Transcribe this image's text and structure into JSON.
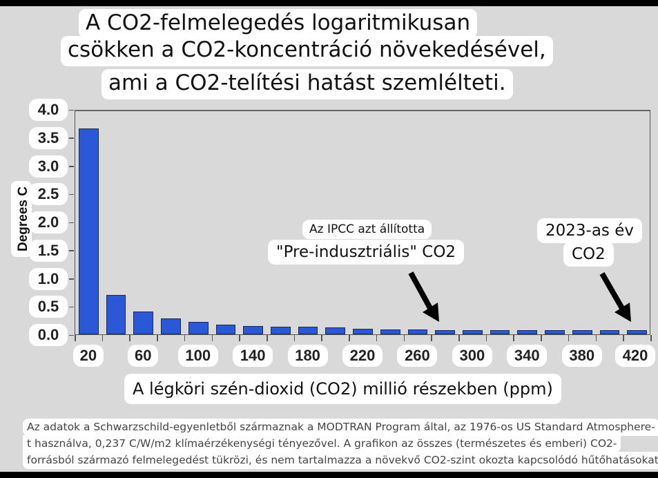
{
  "title": {
    "lines": [
      "A CO2-felmelegedés logaritmikusan",
      "csökken a CO2-koncentráció növekedésével,",
      "ami a CO2-telítési hatást szemlélteti."
    ]
  },
  "colors": {
    "background": "#d9d9d9",
    "bar_fill": "#2b58d6",
    "bar_edge": "#1a2a55",
    "arrow": "#000000"
  },
  "annotations": {
    "ipcc_small": "Az IPCC azt állította",
    "ipcc_big": "\"Pre-indusztriális\" CO2",
    "year_line1": "2023-as év",
    "year_line2": "CO2"
  },
  "footer": {
    "lines": [
      "Az adatok a Schwarzschild-egyenletből származnak a MODTRAN Program által, az 1976-os US Standard Atmosphere-",
      "t használva, 0,237 C/W/m2 klímaérzékenységi tényezővel. A grafikon az összes (természetes és emberi) CO2-",
      "forrásból származó felmelegedést tükrözi, és nem tartalmazza a növekvő CO2-szint okozta kapcsolódó hűtőhatásokat."
    ]
  },
  "chart_data": {
    "type": "bar",
    "title": "A CO2-felmelegedés logaritmikusan csökken a CO2-koncentráció növekedésével, ami a CO2-telítési hatást szemlélteti.",
    "xlabel": "A légköri szén-dioxid (CO2) millió részekben (ppm)",
    "ylabel": "Degrees C",
    "ylim": [
      0,
      4.0
    ],
    "yticks": [
      "0.0",
      "0.5",
      "1.0",
      "1.5",
      "2.0",
      "2.5",
      "3.0",
      "3.5",
      "4.0"
    ],
    "xtick_labels": [
      "20",
      "60",
      "100",
      "140",
      "180",
      "220",
      "260",
      "300",
      "340",
      "380",
      "420"
    ],
    "categories": [
      20,
      40,
      60,
      80,
      100,
      120,
      140,
      160,
      180,
      200,
      220,
      240,
      260,
      280,
      300,
      320,
      340,
      360,
      380,
      400,
      420
    ],
    "values": [
      3.68,
      0.71,
      0.41,
      0.28,
      0.22,
      0.17,
      0.15,
      0.13,
      0.13,
      0.12,
      0.1,
      0.09,
      0.09,
      0.08,
      0.08,
      0.08,
      0.07,
      0.07,
      0.07,
      0.07,
      0.07
    ],
    "grid": false,
    "legend": null,
    "annotations": [
      {
        "text": "Az IPCC azt állította \"Pre-indusztriális\" CO2",
        "points_to_ppm": 280
      },
      {
        "text": "2023-as év CO2",
        "points_to_ppm": 420
      }
    ]
  }
}
